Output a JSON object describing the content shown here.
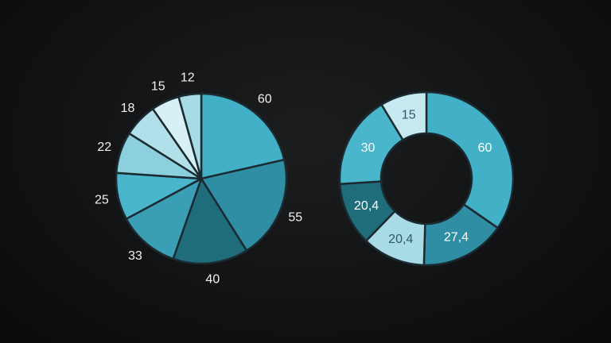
{
  "chart_data": [
    {
      "type": "pie",
      "values": [
        60,
        55,
        40,
        33,
        25,
        22,
        18,
        15,
        12
      ],
      "labels": [
        "60",
        "55",
        "40",
        "33",
        "25",
        "22",
        "18",
        "15",
        "12"
      ],
      "colors": [
        "#42b0c6",
        "#2f8ea3",
        "#1f6d7b",
        "#3a9fb5",
        "#4ab6cb",
        "#8ccfdd",
        "#b2e0ea",
        "#d6f0f5",
        "#a7dbe6"
      ]
    },
    {
      "type": "donut",
      "values": [
        60,
        27.4,
        20.4,
        20.4,
        30,
        15
      ],
      "labels": [
        "60",
        "27,4",
        "20,4",
        "20,4",
        "30",
        "15"
      ],
      "colors": [
        "#42b0c6",
        "#2f8ea3",
        "#a8dbe6",
        "#1f6d7b",
        "#4ab6cb",
        "#c7e9f1"
      ],
      "label_colors": [
        "#ffffff",
        "#ffffff",
        "#2d5a66",
        "#ffffff",
        "#ffffff",
        "#2d5a66"
      ]
    }
  ]
}
